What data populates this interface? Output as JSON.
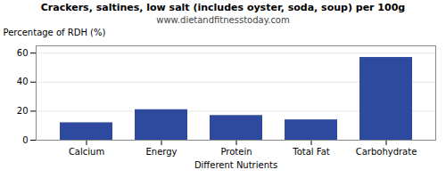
{
  "chart_data": {
    "type": "bar",
    "title": "Crackers, saltines, low salt (includes oyster, soda, soup) per 100g",
    "subtitle": "www.dietandfitnesstoday.com",
    "categories": [
      "Calcium",
      "Energy",
      "Protein",
      "Total Fat",
      "Carbohydrate"
    ],
    "values": [
      12,
      21,
      17,
      14,
      57
    ],
    "color": "#2e4a9e",
    "xlabel": "Different Nutrients",
    "ylabel": "Percentage of RDH (%)",
    "ylim": [
      0,
      65
    ],
    "yticks": [
      0,
      20,
      40,
      60
    ],
    "grid": true
  }
}
